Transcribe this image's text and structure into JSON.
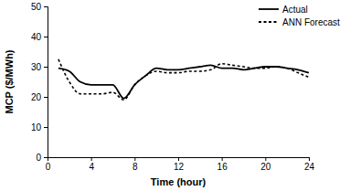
{
  "chart_data": {
    "type": "line",
    "x_label": "Time (hour)",
    "y_label": "MCP ($/MWh)",
    "x": [
      1,
      2,
      3,
      4,
      5,
      6,
      7,
      8,
      9,
      10,
      11,
      12,
      13,
      14,
      15,
      16,
      17,
      18,
      19,
      20,
      21,
      22,
      23,
      24
    ],
    "series": [
      {
        "name": "Actual",
        "color": "#000000",
        "line_style": "solid",
        "values": [
          29.5,
          28.5,
          25,
          24,
          24,
          24,
          19.5,
          24,
          27,
          29.5,
          29,
          29,
          29.5,
          30,
          30.5,
          29.5,
          29.5,
          29,
          29.5,
          30,
          30,
          29.5,
          29,
          28
        ]
      },
      {
        "name": "ANN Forecast",
        "color": "#000000",
        "line_style": "dashed",
        "values": [
          32.5,
          25,
          21,
          21,
          21,
          21.5,
          19,
          24,
          27,
          28.5,
          28,
          28,
          28.5,
          28.5,
          29,
          31,
          30.5,
          30,
          29.5,
          29.5,
          30,
          29.5,
          28,
          26.5
        ]
      }
    ],
    "xlim": [
      0,
      24
    ],
    "xticks": [
      0,
      4,
      8,
      12,
      16,
      20,
      24
    ],
    "ylim": [
      0,
      50
    ],
    "yticks": [
      0,
      10,
      20,
      30,
      40,
      50
    ],
    "grid": false,
    "legend": "top-right"
  }
}
